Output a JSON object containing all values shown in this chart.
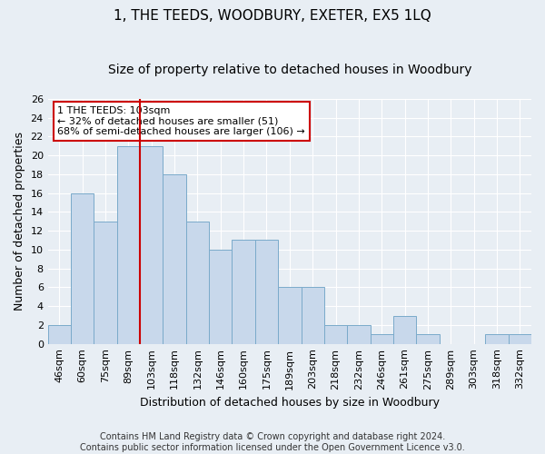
{
  "title": "1, THE TEEDS, WOODBURY, EXETER, EX5 1LQ",
  "subtitle": "Size of property relative to detached houses in Woodbury",
  "xlabel": "Distribution of detached houses by size in Woodbury",
  "ylabel": "Number of detached properties",
  "categories": [
    "46sqm",
    "60sqm",
    "75sqm",
    "89sqm",
    "103sqm",
    "118sqm",
    "132sqm",
    "146sqm",
    "160sqm",
    "175sqm",
    "189sqm",
    "203sqm",
    "218sqm",
    "232sqm",
    "246sqm",
    "261sqm",
    "275sqm",
    "289sqm",
    "303sqm",
    "318sqm",
    "332sqm"
  ],
  "values": [
    2,
    16,
    13,
    21,
    21,
    18,
    13,
    10,
    11,
    11,
    6,
    6,
    2,
    2,
    1,
    3,
    1,
    0,
    0,
    1,
    1
  ],
  "bar_color": "#c8d8eb",
  "bar_edge_color": "#7aaaca",
  "highlight_index": 4,
  "highlight_line_color": "#cc0000",
  "annotation_line1": "1 THE TEEDS: 103sqm",
  "annotation_line2": "← 32% of detached houses are smaller (51)",
  "annotation_line3": "68% of semi-detached houses are larger (106) →",
  "annotation_box_color": "#ffffff",
  "annotation_box_edge": "#cc0000",
  "ylim": [
    0,
    26
  ],
  "yticks": [
    0,
    2,
    4,
    6,
    8,
    10,
    12,
    14,
    16,
    18,
    20,
    22,
    24,
    26
  ],
  "footer": "Contains HM Land Registry data © Crown copyright and database right 2024.\nContains public sector information licensed under the Open Government Licence v3.0.",
  "title_fontsize": 11,
  "subtitle_fontsize": 10,
  "axis_label_fontsize": 9,
  "tick_fontsize": 8,
  "annotation_fontsize": 8,
  "footer_fontsize": 7,
  "background_color": "#e8eef4",
  "plot_background": "#e8eef4"
}
